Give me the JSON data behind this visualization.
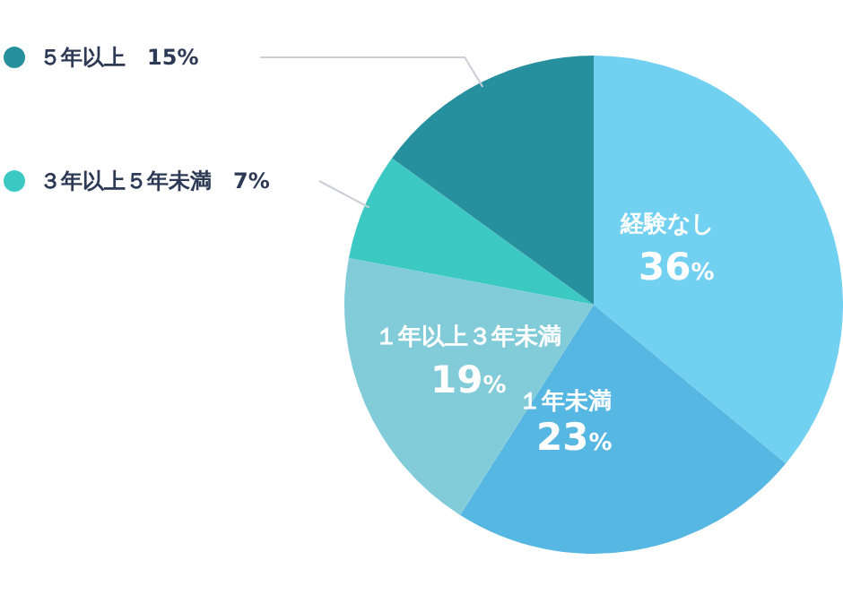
{
  "chart_data": {
    "type": "pie",
    "categories": [
      "経験なし",
      "１年未満",
      "１年以上３年未満",
      "３年以上５年未満",
      "５年以上"
    ],
    "values": [
      36,
      23,
      19,
      7,
      15
    ],
    "value_labels": [
      "36%",
      "23%",
      "19%",
      "7%",
      "15%"
    ],
    "colors": [
      "#72d0f0",
      "#56b7e2",
      "#82cbd8",
      "#3dc9c3",
      "#27909e"
    ],
    "legend": "top left"
  }
}
